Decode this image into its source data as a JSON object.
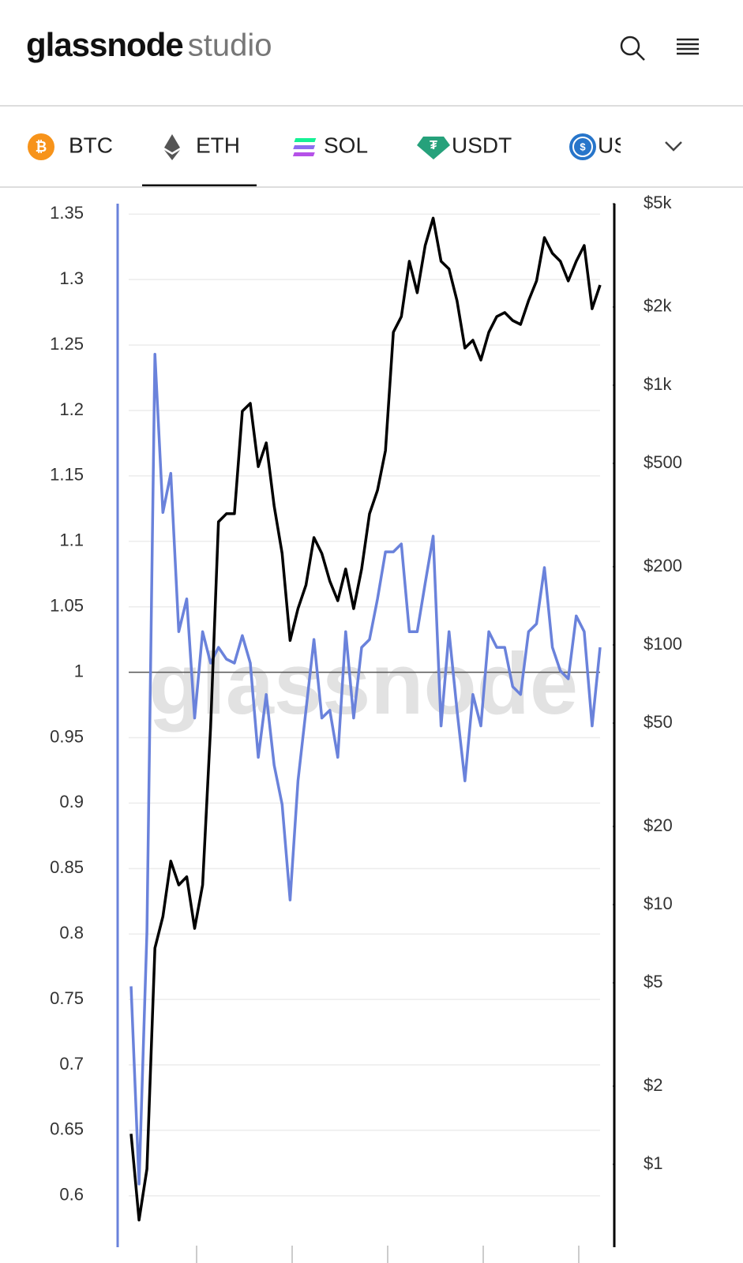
{
  "header": {
    "logo": "glassnode",
    "logo_suffix": "studio"
  },
  "tabs": {
    "items": [
      "BTC",
      "ETH",
      "SOL",
      "USDT",
      "US"
    ],
    "selected": 1
  },
  "chart_data": {
    "type": "line",
    "watermark": "glassnode",
    "ylim": [
      0.58,
      1.358
    ],
    "yticks": [
      1.35,
      1.3,
      1.25,
      1.2,
      1.15,
      1.1,
      1.05,
      1,
      0.95,
      0.9,
      0.85,
      0.8,
      0.75,
      0.7,
      0.65,
      0.6
    ],
    "y2lim": [
      0.6,
      5000
    ],
    "y2log": true,
    "y2ticks": [
      {
        "value": 5000,
        "label": "$5k"
      },
      {
        "value": 2000,
        "label": "$2k"
      },
      {
        "value": 1000,
        "label": "$1k"
      },
      {
        "value": 500,
        "label": "$500"
      },
      {
        "value": 200,
        "label": "$200"
      },
      {
        "value": 100,
        "label": "$100"
      },
      {
        "value": 50,
        "label": "$50"
      },
      {
        "value": 20,
        "label": "$20"
      },
      {
        "value": 10,
        "label": "$10"
      },
      {
        "value": 5,
        "label": "$5"
      },
      {
        "value": 2,
        "label": "$2"
      },
      {
        "value": 1,
        "label": "$1"
      }
    ],
    "baseline": 1,
    "grid": true,
    "series": [
      {
        "color": "#6a82db",
        "axis": "y",
        "values": [
          0.76,
          0.609,
          0.802,
          1.243,
          1.122,
          1.152,
          1.031,
          1.056,
          0.965,
          1.031,
          1.007,
          1.019,
          1.01,
          1.007,
          1.028,
          1.007,
          0.935,
          0.983,
          0.929,
          0.899,
          0.826,
          0.917,
          0.971,
          1.025,
          0.965,
          0.971,
          0.935,
          1.031,
          0.965,
          1.019,
          1.025,
          1.056,
          1.092,
          1.092,
          1.098,
          1.031,
          1.031,
          1.068,
          1.104,
          0.959,
          1.031,
          0.971,
          0.917,
          0.983,
          0.959,
          1.031,
          1.019,
          1.019,
          0.989,
          0.983,
          1.031,
          1.037,
          1.08,
          1.019,
          1.001,
          0.995,
          1.043,
          1.031,
          0.959,
          1.019
        ]
      },
      {
        "color": "#000000",
        "axis": "y2",
        "values": [
          1.31,
          0.61,
          0.96,
          6.8,
          9,
          14.7,
          11.9,
          12.8,
          8.1,
          11.9,
          48,
          298,
          320,
          320,
          794,
          851,
          486,
          600,
          343,
          225,
          104,
          138,
          170,
          259,
          225,
          176,
          148,
          196,
          138,
          196,
          320,
          394,
          560,
          1600,
          1837,
          3000,
          2270,
          3450,
          4400,
          3000,
          2800,
          2115,
          1390,
          1490,
          1250,
          1600,
          1837,
          1905,
          1775,
          1714,
          2115,
          2520,
          3700,
          3220,
          3000,
          2520,
          3000,
          3450,
          1970,
          2430
        ]
      }
    ]
  }
}
